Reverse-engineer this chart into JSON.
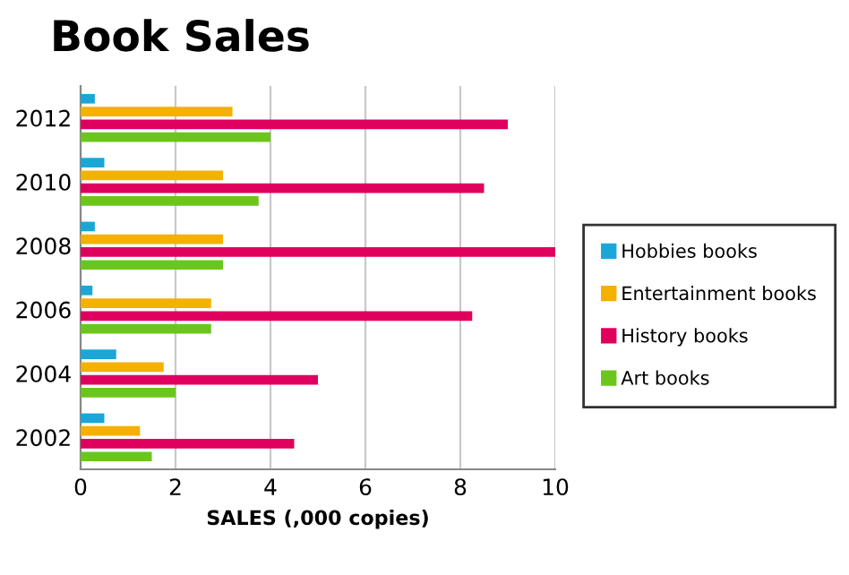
{
  "chart_data": {
    "type": "bar",
    "orientation": "horizontal",
    "title": "Book Sales",
    "xlabel": "SALES (,000 copies)",
    "categories": [
      "2012",
      "2010",
      "2008",
      "2006",
      "2004",
      "2002"
    ],
    "series": [
      {
        "name": "Hobbies books",
        "color": "#1aa7d8",
        "values": [
          0.3,
          0.5,
          0.3,
          0.25,
          0.75,
          0.5
        ]
      },
      {
        "name": "Entertainment books",
        "color": "#f5b000",
        "values": [
          3.2,
          3,
          3,
          2.75,
          1.75,
          1.25
        ]
      },
      {
        "name": "History books",
        "color": "#e0005e",
        "values": [
          9,
          8.5,
          10,
          8.25,
          5,
          4.5
        ]
      },
      {
        "name": "Art books",
        "color": "#6cc51c",
        "values": [
          4,
          3.75,
          3,
          2.75,
          2,
          1.5
        ]
      }
    ],
    "xlim": [
      0,
      10
    ],
    "xticks": [
      0,
      2,
      4,
      6,
      8,
      10
    ],
    "grid": "x",
    "legend": "right"
  }
}
